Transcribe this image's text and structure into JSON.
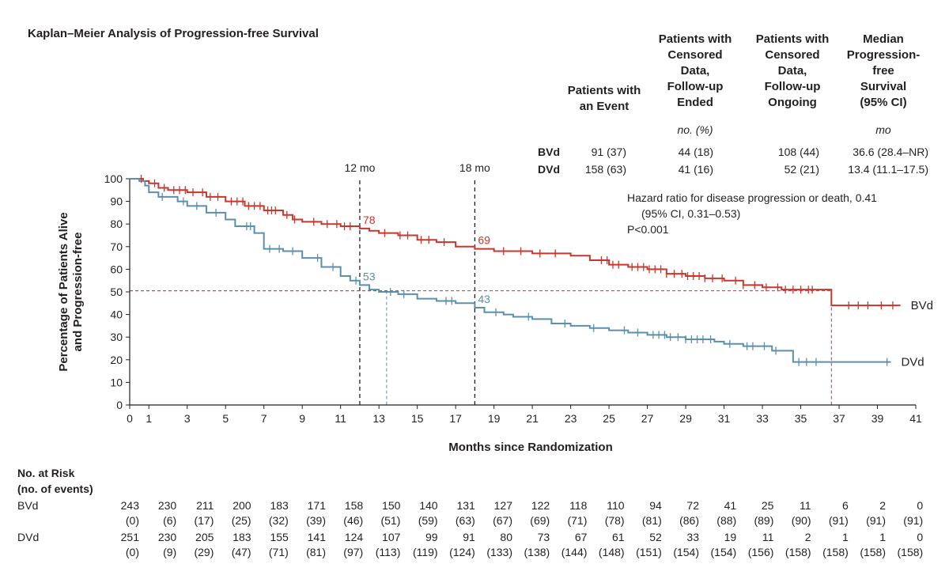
{
  "title": "Kaplan–Meier Analysis of Progression-free Survival",
  "table": {
    "headers": [
      "Patients with\nan Event",
      "Patients with\nCensored\nData,\nFollow-up\nEnded",
      "Patients with\nCensored\nData,\nFollow-up\nOngoing",
      "Median\nProgression-\nfree\nSurvival\n(95% CI)"
    ],
    "units": [
      "",
      "no. (%)",
      "",
      "mo"
    ],
    "rows": [
      {
        "label": "BVd",
        "event": "91 (37)",
        "ended": "44 (18)",
        "ongoing": "108 (44)",
        "median": "36.6 (28.4–NR)"
      },
      {
        "label": "DVd",
        "event": "158 (63)",
        "ended": "41 (16)",
        "ongoing": "52 (21)",
        "median": "13.4 (11.1–17.5)"
      }
    ]
  },
  "hazard": {
    "line1": "Hazard ratio for disease progression or death, 0.41",
    "line2": "(95% CI, 0.31–0.53)",
    "line3": "P<0.001"
  },
  "risk": {
    "title_line1": "No. at Risk",
    "title_line2": "(no. of events)",
    "bvd_label": "BVd",
    "dvd_label": "DVd",
    "bvd_n": [
      "243",
      "230",
      "211",
      "200",
      "183",
      "171",
      "158",
      "150",
      "140",
      "131",
      "127",
      "122",
      "118",
      "110",
      "94",
      "72",
      "41",
      "25",
      "11",
      "6",
      "2",
      "0"
    ],
    "bvd_e": [
      "(0)",
      "(6)",
      "(17)",
      "(25)",
      "(32)",
      "(39)",
      "(46)",
      "(51)",
      "(59)",
      "(63)",
      "(67)",
      "(69)",
      "(71)",
      "(78)",
      "(81)",
      "(86)",
      "(88)",
      "(89)",
      "(90)",
      "(91)",
      "(91)",
      "(91)"
    ],
    "dvd_n": [
      "251",
      "230",
      "205",
      "183",
      "155",
      "141",
      "124",
      "107",
      "99",
      "91",
      "80",
      "73",
      "67",
      "61",
      "52",
      "33",
      "19",
      "11",
      "2",
      "1",
      "1",
      "0"
    ],
    "dvd_e": [
      "(0)",
      "(9)",
      "(29)",
      "(47)",
      "(71)",
      "(81)",
      "(97)",
      "(113)",
      "(119)",
      "(124)",
      "(133)",
      "(138)",
      "(144)",
      "(148)",
      "(151)",
      "(154)",
      "(154)",
      "(156)",
      "(158)",
      "(158)",
      "(158)",
      "(158)"
    ]
  },
  "chart_data": {
    "type": "line",
    "xlabel": "Months since Randomization",
    "ylabel": "Percentage of Patients Alive and Progression-free",
    "xlim": [
      0,
      41
    ],
    "ylim": [
      0,
      100
    ],
    "x_ticks": [
      0,
      1,
      3,
      5,
      7,
      9,
      11,
      13,
      15,
      17,
      19,
      21,
      23,
      25,
      27,
      29,
      31,
      33,
      35,
      37,
      39,
      41
    ],
    "y_ticks": [
      0,
      10,
      20,
      30,
      40,
      50,
      60,
      70,
      80,
      90,
      100
    ],
    "colors": {
      "BVd": "#c8372d",
      "DVd": "#5b8fac"
    },
    "series": [
      {
        "name": "BVd",
        "points": [
          [
            0,
            100
          ],
          [
            0.5,
            100
          ],
          [
            0.7,
            99
          ],
          [
            1,
            98
          ],
          [
            1.5,
            96
          ],
          [
            2,
            95
          ],
          [
            3,
            94
          ],
          [
            4,
            92
          ],
          [
            5,
            90
          ],
          [
            6,
            88
          ],
          [
            7,
            86
          ],
          [
            8,
            84
          ],
          [
            8.5,
            82
          ],
          [
            9,
            81
          ],
          [
            10,
            80
          ],
          [
            11,
            79
          ],
          [
            12,
            78
          ],
          [
            12.5,
            77
          ],
          [
            13,
            76
          ],
          [
            14,
            75
          ],
          [
            15,
            73
          ],
          [
            16,
            72
          ],
          [
            17,
            70
          ],
          [
            18,
            69
          ],
          [
            19,
            68
          ],
          [
            20,
            68
          ],
          [
            21,
            67
          ],
          [
            23,
            66
          ],
          [
            24,
            64
          ],
          [
            25,
            62
          ],
          [
            26,
            61
          ],
          [
            27,
            60
          ],
          [
            28,
            58
          ],
          [
            29,
            57
          ],
          [
            30,
            56
          ],
          [
            31,
            55
          ],
          [
            32,
            53
          ],
          [
            33,
            52
          ],
          [
            34,
            51
          ],
          [
            35.5,
            51
          ],
          [
            36.6,
            51
          ],
          [
            36.6,
            44
          ],
          [
            40.2,
            44
          ]
        ],
        "censor_x": [
          0.6,
          1.3,
          1.8,
          2.3,
          2.6,
          2.9,
          3.3,
          3.8,
          4.2,
          4.6,
          5.3,
          5.6,
          5.9,
          6.2,
          6.5,
          6.8,
          7.2,
          7.4,
          7.6,
          8.2,
          8.6,
          9.6,
          10.3,
          10.8,
          11.2,
          11.5,
          13.3,
          14.1,
          14.5,
          15.2,
          15.6,
          16.4,
          19.5,
          20.4,
          21.4,
          22.2,
          24.6,
          24.9,
          25.2,
          25.5,
          26.2,
          26.5,
          26.8,
          27.1,
          27.4,
          27.7,
          28.0,
          28.4,
          28.8,
          29.1,
          29.4,
          29.7,
          30.0,
          30.4,
          30.9,
          31.6,
          32.0,
          32.6,
          33.2,
          33.8,
          34.2,
          34.6,
          35.0,
          35.4,
          35.6,
          37.5,
          38.0,
          38.5,
          39.2,
          39.8
        ],
        "labels": [
          {
            "x": 12,
            "y": 78,
            "text": "78"
          },
          {
            "x": 18,
            "y": 69,
            "text": "69"
          }
        ],
        "end_label": "BVd"
      },
      {
        "name": "DVd",
        "points": [
          [
            0,
            100
          ],
          [
            0.5,
            99
          ],
          [
            0.8,
            97
          ],
          [
            1,
            94
          ],
          [
            1.5,
            92
          ],
          [
            2.5,
            90
          ],
          [
            3,
            88
          ],
          [
            4,
            85
          ],
          [
            5,
            82
          ],
          [
            5.5,
            79
          ],
          [
            6.5,
            76
          ],
          [
            7,
            69
          ],
          [
            8,
            68
          ],
          [
            9,
            65
          ],
          [
            10,
            61
          ],
          [
            11,
            57
          ],
          [
            11.5,
            55
          ],
          [
            12,
            53
          ],
          [
            12.5,
            51
          ],
          [
            13,
            50
          ],
          [
            13.4,
            50
          ],
          [
            14,
            49
          ],
          [
            15,
            47
          ],
          [
            16,
            46
          ],
          [
            17,
            45
          ],
          [
            18,
            43
          ],
          [
            18.5,
            41
          ],
          [
            19.5,
            40
          ],
          [
            20,
            39
          ],
          [
            21,
            38
          ],
          [
            22,
            36
          ],
          [
            23,
            35
          ],
          [
            24,
            34
          ],
          [
            25,
            33
          ],
          [
            26,
            32
          ],
          [
            27,
            31
          ],
          [
            28,
            30
          ],
          [
            29,
            29
          ],
          [
            30.5,
            28
          ],
          [
            31,
            27
          ],
          [
            32,
            26
          ],
          [
            33.5,
            24
          ],
          [
            34.6,
            24
          ],
          [
            34.6,
            19
          ],
          [
            36,
            19
          ],
          [
            39.7,
            19
          ]
        ],
        "censor_x": [
          1.7,
          2.8,
          3.5,
          4.5,
          6.1,
          6.3,
          7.3,
          7.8,
          8.5,
          9.8,
          10.6,
          11.8,
          13.6,
          14.3,
          16.5,
          16.8,
          19.1,
          20.8,
          22.7,
          24.2,
          25.8,
          26.5,
          27.3,
          27.6,
          27.9,
          28.2,
          28.6,
          29.0,
          29.3,
          29.6,
          29.9,
          30.3,
          31.3,
          32.2,
          32.5,
          33.1,
          33.7,
          34.9,
          35.3,
          35.8,
          39.5
        ],
        "labels": [
          {
            "x": 12,
            "y": 53,
            "text": "53"
          },
          {
            "x": 18,
            "y": 43,
            "text": "43"
          }
        ],
        "end_label": "DVd"
      }
    ],
    "reference_lines": [
      {
        "x": 12,
        "label": "12 mo"
      },
      {
        "x": 18,
        "label": "18 mo"
      }
    ],
    "medians": [
      {
        "series": "DVd",
        "x": 13.4,
        "y": 50
      },
      {
        "series": "BVd",
        "x": 36.6,
        "y": 50
      }
    ]
  }
}
